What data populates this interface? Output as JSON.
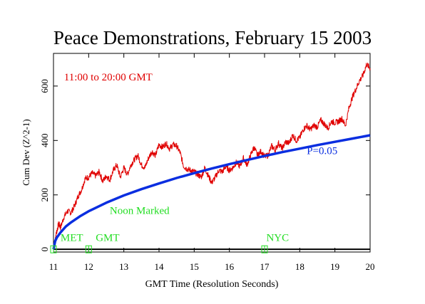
{
  "chart_data": {
    "type": "line",
    "title": "Peace Demonstrations, February 15 2003",
    "xlabel": "GMT Time (Resolution Seconds)",
    "ylabel": "Cum Dev (Z^2-1)",
    "xlim": [
      11,
      20
    ],
    "ylim": [
      -10,
      720
    ],
    "x_ticks": [
      11,
      12,
      13,
      14,
      15,
      16,
      17,
      18,
      19,
      20
    ],
    "x_tick_labels": [
      "11",
      "12",
      "13",
      "14",
      "15",
      "16",
      "17",
      "18",
      "19",
      "20"
    ],
    "y_ticks": [
      0,
      200,
      400,
      600
    ],
    "y_tick_labels": [
      "0",
      "200",
      "400",
      "600"
    ],
    "series": [
      {
        "color": "#e00000",
        "x": [
          11.0,
          11.05,
          11.1,
          11.15,
          11.2,
          11.3,
          11.4,
          11.5,
          11.6,
          11.7,
          11.8,
          11.9,
          12.0,
          12.1,
          12.2,
          12.3,
          12.4,
          12.5,
          12.6,
          12.7,
          12.8,
          12.9,
          13.0,
          13.1,
          13.2,
          13.3,
          13.4,
          13.5,
          13.6,
          13.7,
          13.8,
          13.9,
          14.0,
          14.1,
          14.2,
          14.3,
          14.4,
          14.5,
          14.6,
          14.7,
          14.8,
          14.9,
          15.0,
          15.1,
          15.2,
          15.3,
          15.4,
          15.5,
          15.6,
          15.7,
          15.8,
          15.9,
          16.0,
          16.1,
          16.2,
          16.3,
          16.4,
          16.5,
          16.6,
          16.7,
          16.8,
          16.9,
          17.0,
          17.1,
          17.2,
          17.3,
          17.4,
          17.5,
          17.6,
          17.7,
          17.8,
          17.9,
          18.0,
          18.1,
          18.2,
          18.3,
          18.4,
          18.5,
          18.6,
          18.7,
          18.8,
          18.9,
          19.0,
          19.1,
          19.2,
          19.3,
          19.4,
          19.5,
          19.6,
          19.7,
          19.8,
          19.9,
          20.0
        ],
        "y": [
          0,
          40,
          70,
          95,
          80,
          120,
          140,
          135,
          160,
          195,
          220,
          260,
          265,
          280,
          270,
          285,
          250,
          270,
          255,
          290,
          310,
          265,
          300,
          275,
          310,
          330,
          345,
          310,
          300,
          335,
          360,
          345,
          385,
          375,
          390,
          370,
          385,
          380,
          355,
          305,
          295,
          290,
          285,
          275,
          265,
          300,
          270,
          245,
          265,
          290,
          285,
          305,
          290,
          300,
          320,
          305,
          335,
          310,
          345,
          375,
          345,
          360,
          340,
          345,
          380,
          365,
          390,
          370,
          395,
          390,
          420,
          400,
          410,
          440,
          455,
          440,
          455,
          450,
          475,
          460,
          445,
          470,
          465,
          470,
          480,
          455,
          520,
          560,
          590,
          620,
          640,
          680,
          665
        ]
      },
      {
        "name": "P=0.05",
        "color": "#0a2ee0",
        "x": [
          11.0,
          11.05,
          11.1,
          11.2,
          11.35,
          11.5,
          11.75,
          12.0,
          12.5,
          13.0,
          13.5,
          14.0,
          14.5,
          15.0,
          15.5,
          16.0,
          16.5,
          17.0,
          17.5,
          18.0,
          18.5,
          19.0,
          19.5,
          20.0
        ],
        "y": [
          0,
          31,
          44,
          62,
          84,
          99,
          121,
          140,
          171,
          198,
          221,
          242,
          262,
          280,
          297,
          313,
          328,
          343,
          357,
          370,
          383,
          395,
          407,
          419
        ]
      }
    ],
    "annotations": [
      {
        "text": "11:00 to 20:00 GMT",
        "color": "#e00000",
        "x": 11.3,
        "y": 620
      },
      {
        "text": "P=0.05",
        "color": "#0a2ee0",
        "x": 18.2,
        "y": 350
      },
      {
        "text": "Noon Marked",
        "color": "#22dd22",
        "x": 12.6,
        "y": 130
      },
      {
        "text": "MET",
        "color": "#22dd22",
        "x": 11.2,
        "y": 30
      },
      {
        "text": "GMT",
        "color": "#22dd22",
        "x": 12.2,
        "y": 30
      },
      {
        "text": "NYC",
        "color": "#22dd22",
        "x": 17.05,
        "y": 30
      }
    ],
    "markers": [
      {
        "x": 11.0,
        "y": 0,
        "color": "#22dd22"
      },
      {
        "x": 12.0,
        "y": 0,
        "color": "#22dd22"
      },
      {
        "x": 17.0,
        "y": 0,
        "color": "#22dd22"
      }
    ],
    "zero_line": true,
    "grid": false,
    "legend": "none"
  }
}
